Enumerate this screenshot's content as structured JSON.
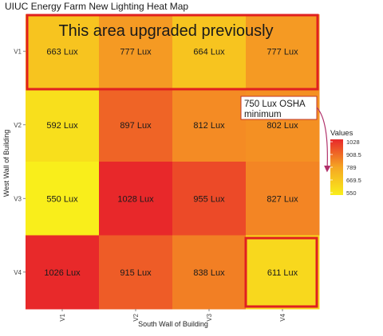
{
  "chart_data": {
    "type": "heatmap",
    "title": "UIUC Energy Farm New Lighting Heat Map",
    "xlabel": "South Wall of Building",
    "ylabel": "West Wall of Building",
    "x_categories": [
      "V1",
      "V2",
      "V3",
      "V4"
    ],
    "y_categories": [
      "V1",
      "V2",
      "V3",
      "V4"
    ],
    "value_suffix": " Lux",
    "cells": [
      {
        "x": "V1",
        "y": "V1",
        "value": 663
      },
      {
        "x": "V2",
        "y": "V1",
        "value": 777
      },
      {
        "x": "V3",
        "y": "V1",
        "value": 664
      },
      {
        "x": "V4",
        "y": "V1",
        "value": 777
      },
      {
        "x": "V1",
        "y": "V2",
        "value": 592
      },
      {
        "x": "V2",
        "y": "V2",
        "value": 897
      },
      {
        "x": "V3",
        "y": "V2",
        "value": 812
      },
      {
        "x": "V4",
        "y": "V2",
        "value": 802
      },
      {
        "x": "V1",
        "y": "V3",
        "value": 550
      },
      {
        "x": "V2",
        "y": "V3",
        "value": 1028
      },
      {
        "x": "V3",
        "y": "V3",
        "value": 955
      },
      {
        "x": "V4",
        "y": "V3",
        "value": 827
      },
      {
        "x": "V1",
        "y": "V4",
        "value": 1026
      },
      {
        "x": "V2",
        "y": "V4",
        "value": 915
      },
      {
        "x": "V3",
        "y": "V4",
        "value": 838
      },
      {
        "x": "V4",
        "y": "V4",
        "value": 611
      }
    ],
    "legend": {
      "title": "Values",
      "ticks": [
        1028,
        908.5,
        789,
        669.5,
        550
      ],
      "min": 550,
      "max": 1028,
      "color_low": "#f9ee1b",
      "color_high": "#e8282a",
      "placement": "right"
    },
    "annotations": {
      "upgraded_area_text": "This area upgraded previously",
      "osha_note_line1": "750 Lux OSHA",
      "osha_note_line2": "minimum",
      "highlight_color": "#e02020"
    },
    "grid": false
  }
}
